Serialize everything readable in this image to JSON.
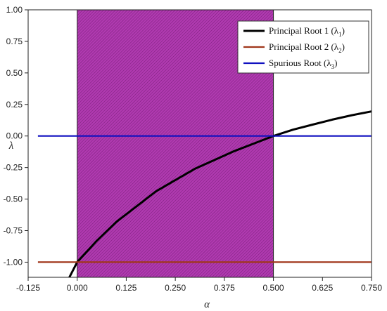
{
  "chart_data": {
    "type": "line",
    "xlabel": "α",
    "ylabel": "λ",
    "xlim": [
      -0.125,
      0.75
    ],
    "ylim": [
      -1.12,
      1.0
    ],
    "xticks": [
      "-0.125",
      "0.000",
      "0.125",
      "0.250",
      "0.375",
      "0.500",
      "0.625",
      "0.750"
    ],
    "yticks": [
      "-1.00",
      "-0.75",
      "-0.50",
      "-0.25",
      "0.00",
      "0.25",
      "0.50",
      "0.75",
      "1.00"
    ],
    "shaded_region": {
      "x": [
        0.0,
        0.5
      ],
      "color": "#b03ab0"
    },
    "legend_position": "top-right",
    "series": [
      {
        "name": "Principal Root 1 (λ1)",
        "label_main": "Principal Root 1 (λ",
        "label_sub": "1",
        "label_end": ")",
        "color": "#000000",
        "x": [
          -0.02,
          0.0,
          0.05,
          0.1,
          0.15,
          0.2,
          0.25,
          0.3,
          0.35,
          0.4,
          0.45,
          0.5,
          0.55,
          0.6,
          0.65,
          0.7,
          0.75
        ],
        "y": [
          -1.12,
          -1.0,
          -0.83,
          -0.68,
          -0.56,
          -0.44,
          -0.35,
          -0.26,
          -0.19,
          -0.12,
          -0.06,
          0.0,
          0.05,
          0.09,
          0.13,
          0.165,
          0.195
        ]
      },
      {
        "name": "Principal Root 2 (λ2)",
        "label_main": "Principal Root 2 (λ",
        "label_sub": "2",
        "label_end": ")",
        "color": "#a0361a",
        "x": [
          -0.1,
          0.75
        ],
        "y": [
          -1.0,
          -1.0
        ]
      },
      {
        "name": "Spurious Root (λ3)",
        "label_main": "Spurious Root (λ",
        "label_sub": "3",
        "label_end": ")",
        "color": "#1010c0",
        "x": [
          -0.1,
          0.75
        ],
        "y": [
          0.0,
          0.0
        ]
      }
    ]
  }
}
